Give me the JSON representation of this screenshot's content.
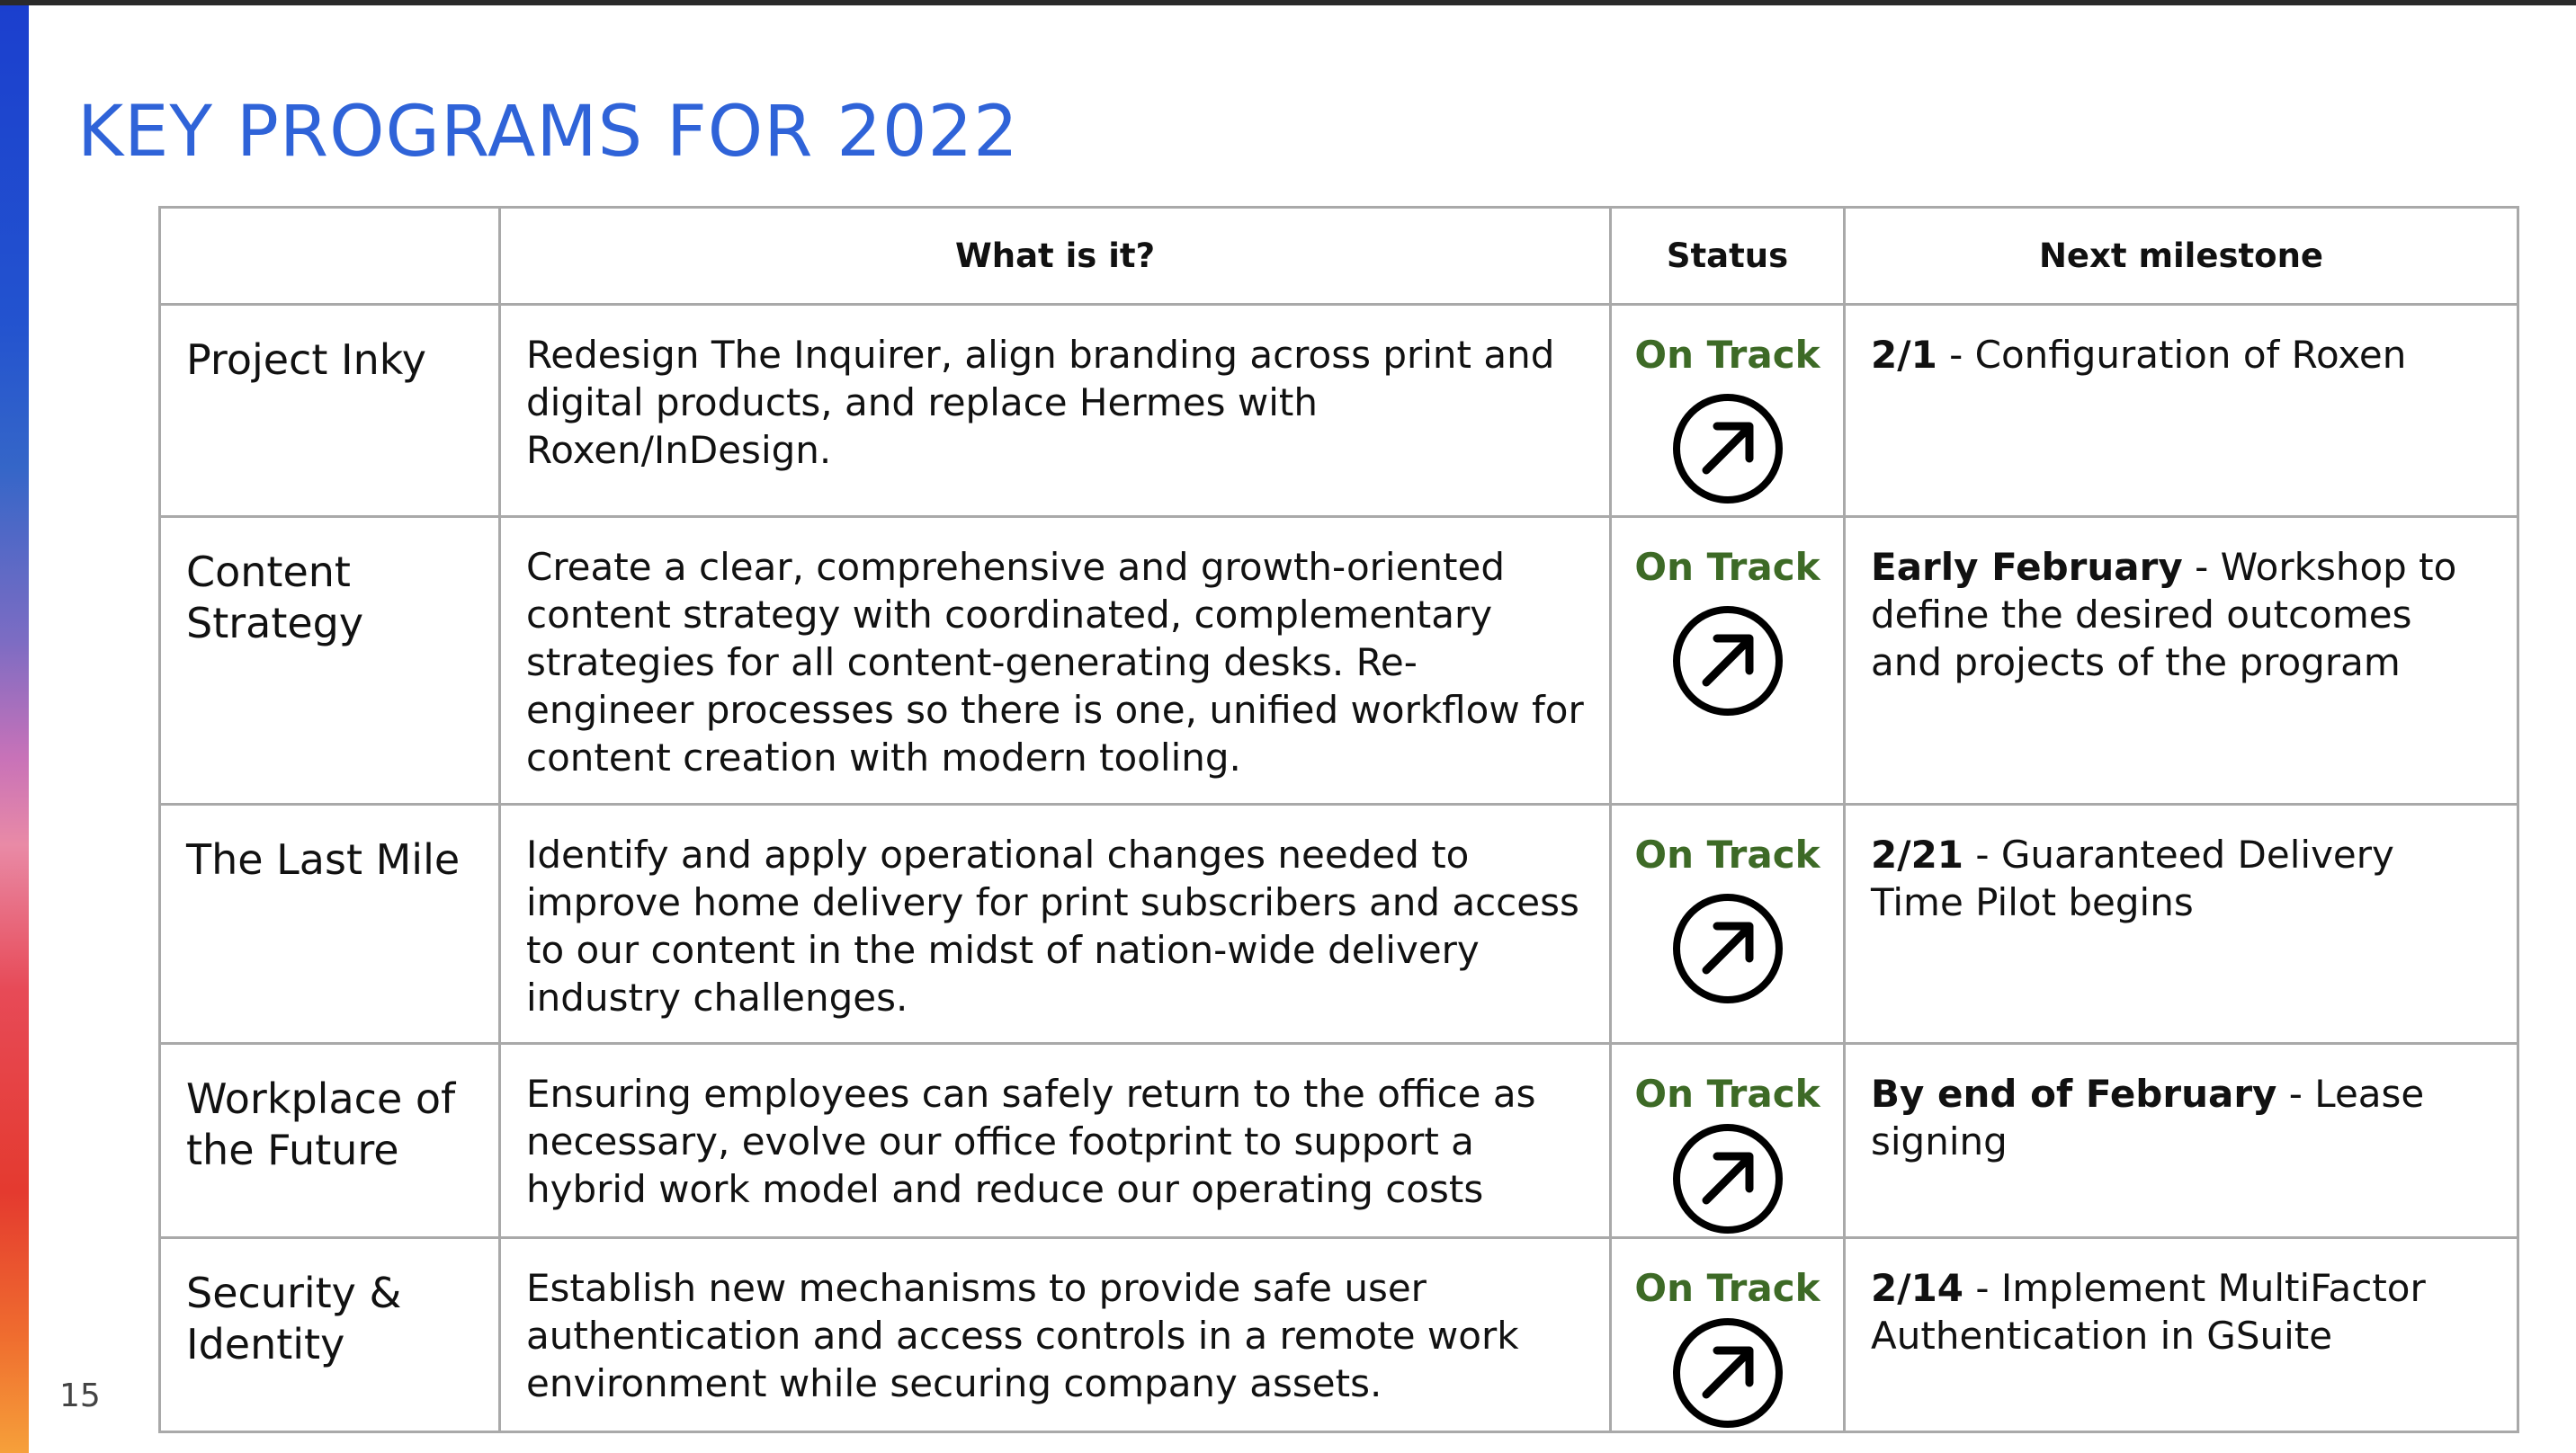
{
  "slide": {
    "title": "KEY PROGRAMS FOR 2022",
    "page_number": "15"
  },
  "table": {
    "headers": [
      "",
      "What is it?",
      "Status",
      "Next milestone"
    ],
    "rows": [
      {
        "name": "Project Inky",
        "description": "Redesign The Inquirer, align branding across print and digital products, and replace Hermes with Roxen/InDesign.",
        "status": "On Track",
        "status_icon": "up-right-arrow-icon",
        "milestone_key": "2/1",
        "milestone_text": " - Configuration of Roxen"
      },
      {
        "name": "Content Strategy",
        "description": "Create a clear, comprehensive and growth-oriented content strategy with coordinated, complementary strategies for all content-generating desks. Re-engineer processes so there is one, unified workflow for content creation with modern tooling.",
        "status": "On Track",
        "status_icon": "up-right-arrow-icon",
        "milestone_key": "Early February",
        "milestone_text": " - Workshop to define the desired outcomes and projects of the program"
      },
      {
        "name": "The Last Mile",
        "description": "Identify and apply operational changes needed to improve home delivery for print subscribers and access to our content in the midst of nation-wide delivery industry challenges.",
        "status": "On Track",
        "status_icon": "up-right-arrow-icon",
        "milestone_key": "2/21",
        "milestone_text": " - Guaranteed Delivery Time Pilot begins"
      },
      {
        "name": "Workplace of the Future",
        "description": "Ensuring employees can safely return to the office as necessary, evolve our office footprint to support a hybrid work model and reduce our operating costs",
        "status": "On Track",
        "status_icon": "up-right-arrow-icon",
        "milestone_key": "By end of February",
        "milestone_text": " - Lease signing"
      },
      {
        "name": "Security & Identity",
        "description": "Establish new mechanisms to provide safe user authentication and access controls in a remote work environment while securing company assets.",
        "status": "On Track",
        "status_icon": "up-right-arrow-icon",
        "milestone_key": "2/14",
        "milestone_text": " - Implement MultiFactor Authentication in GSuite"
      }
    ]
  },
  "colors": {
    "title": "#2f63d8",
    "status_on_track": "#3d6a26",
    "table_border": "#a9a9a9"
  }
}
